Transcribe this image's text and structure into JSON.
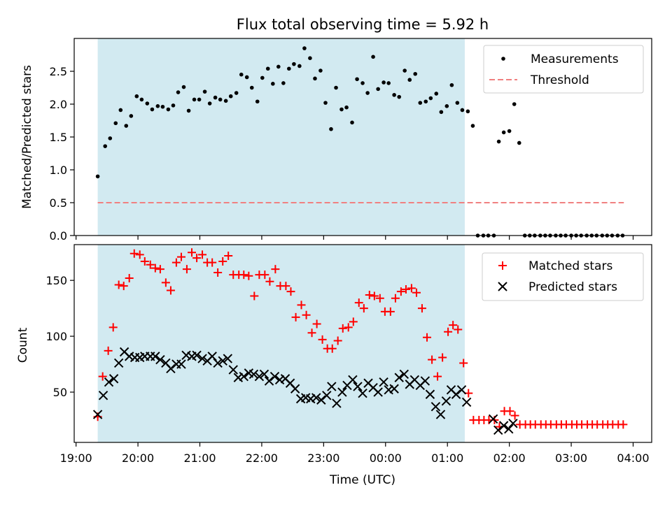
{
  "colors": {
    "shade": "#add8e6",
    "measure": "#000000",
    "threshold": "#f08080",
    "matched": "#ff0000",
    "predicted": "#000000"
  },
  "chart_data": [
    {
      "type": "scatter",
      "title": "Flux total observing time = 5.92 h",
      "ylabel": "Matched/Predicted stars",
      "ylim": [
        0,
        3.0
      ],
      "yticks": [
        0.0,
        0.5,
        1.0,
        1.5,
        2.0,
        2.5
      ],
      "ytick_labels": [
        "0.0",
        "0.5",
        "1.0",
        "1.5",
        "2.0",
        "2.5"
      ],
      "xlim_hours": [
        18.97,
        28.3
      ],
      "xticks_hours": [
        19,
        20,
        21,
        22,
        23,
        24,
        25,
        26,
        27,
        28
      ],
      "shaded_span_hours": [
        19.35,
        25.28
      ],
      "legend_position": "top-right",
      "series": [
        {
          "name": "Measurements",
          "marker": "dot",
          "x": [
            19.35,
            19.47,
            19.55,
            19.64,
            19.72,
            19.81,
            19.89,
            19.98,
            20.06,
            20.15,
            20.23,
            20.32,
            20.4,
            20.49,
            20.57,
            20.65,
            20.74,
            20.82,
            20.91,
            20.99,
            21.08,
            21.16,
            21.25,
            21.33,
            21.42,
            21.5,
            21.59,
            21.67,
            21.76,
            21.84,
            21.93,
            22.01,
            22.1,
            22.18,
            22.27,
            22.35,
            22.44,
            22.52,
            22.61,
            22.69,
            22.78,
            22.86,
            22.95,
            23.03,
            23.12,
            23.2,
            23.29,
            23.37,
            23.46,
            23.54,
            23.63,
            23.71,
            23.8,
            23.88,
            23.97,
            24.05,
            24.14,
            24.22,
            24.31,
            24.39,
            24.48,
            24.56,
            24.65,
            24.73,
            24.82,
            24.9,
            24.99,
            25.07,
            25.16,
            25.24,
            25.33,
            25.41,
            25.49,
            25.58,
            25.66,
            25.75,
            25.83,
            25.91,
            26.0,
            26.08,
            26.16,
            26.25,
            26.33,
            26.41,
            26.5,
            26.58,
            26.66,
            26.75,
            26.83,
            26.91,
            27.0,
            27.08,
            27.16,
            27.25,
            27.33,
            27.41,
            27.5,
            27.58,
            27.66,
            27.75,
            27.83
          ],
          "y": [
            0.9,
            1.36,
            1.48,
            1.71,
            1.91,
            1.67,
            1.82,
            2.12,
            2.07,
            2.01,
            1.92,
            1.97,
            1.96,
            1.92,
            1.98,
            2.18,
            2.26,
            1.9,
            2.07,
            2.07,
            2.19,
            2.01,
            2.1,
            2.07,
            2.05,
            2.12,
            2.17,
            2.45,
            2.41,
            2.25,
            2.04,
            2.4,
            2.54,
            2.31,
            2.57,
            2.32,
            2.54,
            2.61,
            2.58,
            2.85,
            2.7,
            2.39,
            2.51,
            2.02,
            1.62,
            2.25,
            1.92,
            1.95,
            1.72,
            2.38,
            2.32,
            2.17,
            2.72,
            2.23,
            2.33,
            2.32,
            2.14,
            2.11,
            2.51,
            2.37,
            2.46,
            2.02,
            2.04,
            2.09,
            2.16,
            1.88,
            1.97,
            2.29,
            2.02,
            1.91,
            1.89,
            1.67,
            0.0,
            0.0,
            0.0,
            0.0,
            1.43,
            1.57,
            1.59,
            2.0,
            1.41,
            0.0,
            0.0,
            0.0,
            0.0,
            0.0,
            0.0,
            0.0,
            0.0,
            0.0,
            0.0,
            0.0,
            0.0,
            0.0,
            0.0,
            0.0,
            0.0,
            0.0,
            0.0,
            0.0,
            0.0
          ]
        },
        {
          "name": "Threshold",
          "style": "dashed",
          "x": [
            19.35,
            27.85
          ],
          "y": [
            0.5,
            0.5
          ]
        }
      ]
    },
    {
      "type": "scatter",
      "xlabel": "Time (UTC)",
      "ylabel": "Count",
      "ylim": [
        5,
        182
      ],
      "yticks": [
        50,
        100,
        150
      ],
      "ytick_labels": [
        "50",
        "100",
        "150"
      ],
      "xlim_hours": [
        18.97,
        28.3
      ],
      "xticks_hours": [
        19,
        20,
        21,
        22,
        23,
        24,
        25,
        26,
        27,
        28
      ],
      "xtick_labels": [
        "19:00",
        "20:00",
        "21:00",
        "22:00",
        "23:00",
        "00:00",
        "01:00",
        "02:00",
        "03:00",
        "04:00"
      ],
      "shaded_span_hours": [
        19.35,
        25.28
      ],
      "legend_position": "top-right",
      "series": [
        {
          "name": "Matched stars",
          "marker": "plus",
          "x": [
            19.35,
            19.43,
            19.52,
            19.6,
            19.69,
            19.77,
            19.86,
            19.94,
            20.03,
            20.11,
            20.2,
            20.28,
            20.36,
            20.45,
            20.53,
            20.62,
            20.7,
            20.79,
            20.87,
            20.95,
            21.04,
            21.12,
            21.2,
            21.29,
            21.37,
            21.46,
            21.54,
            21.63,
            21.71,
            21.79,
            21.88,
            21.96,
            22.05,
            22.13,
            22.22,
            22.3,
            22.39,
            22.47,
            22.55,
            22.64,
            22.72,
            22.81,
            22.89,
            22.98,
            23.06,
            23.14,
            23.23,
            23.31,
            23.4,
            23.48,
            23.57,
            23.65,
            23.74,
            23.82,
            23.91,
            23.99,
            24.08,
            24.16,
            24.25,
            24.33,
            24.42,
            24.5,
            24.59,
            24.67,
            24.75,
            24.84,
            24.92,
            25.01,
            25.09,
            25.17,
            25.26,
            25.34,
            25.42,
            25.51,
            25.59,
            25.67,
            25.76,
            25.84,
            25.92,
            26.01,
            26.09,
            26.17,
            26.26,
            26.34,
            26.42,
            26.51,
            26.59,
            26.67,
            26.76,
            26.84,
            26.92,
            27.01,
            27.09,
            27.17,
            27.26,
            27.34,
            27.42,
            27.51,
            27.59,
            27.67,
            27.76,
            27.84
          ],
          "y": [
            28,
            64,
            87,
            108,
            146,
            145,
            152,
            174,
            173,
            167,
            164,
            161,
            160,
            148,
            141,
            166,
            171,
            160,
            175,
            170,
            173,
            166,
            166,
            157,
            167,
            172,
            155,
            155,
            155,
            154,
            136,
            155,
            155,
            149,
            160,
            145,
            145,
            140,
            117,
            128,
            119,
            103,
            111,
            97,
            89,
            89,
            96,
            107,
            108,
            113,
            130,
            125,
            137,
            136,
            134,
            122,
            122,
            134,
            140,
            142,
            143,
            139,
            125,
            99,
            79,
            64,
            81,
            104,
            110,
            106,
            76,
            49,
            25,
            25,
            25,
            25,
            25,
            19,
            33,
            33,
            29,
            21,
            21,
            21,
            21,
            21,
            21,
            21,
            21,
            21,
            21,
            21,
            21,
            21,
            21,
            21,
            21,
            21,
            21,
            21,
            21,
            21
          ]
        },
        {
          "name": "Predicted stars",
          "marker": "x",
          "x": [
            19.35,
            19.44,
            19.53,
            19.61,
            19.69,
            19.78,
            19.86,
            19.95,
            20.03,
            20.11,
            20.2,
            20.28,
            20.36,
            20.45,
            20.53,
            20.62,
            20.7,
            20.78,
            20.87,
            20.95,
            21.04,
            21.12,
            21.2,
            21.29,
            21.37,
            21.45,
            21.54,
            21.62,
            21.71,
            21.79,
            21.87,
            21.96,
            22.04,
            22.12,
            22.21,
            22.29,
            22.38,
            22.46,
            22.54,
            22.63,
            22.71,
            22.79,
            22.88,
            22.96,
            23.05,
            23.13,
            23.21,
            23.3,
            23.38,
            23.47,
            23.55,
            23.63,
            23.72,
            23.8,
            23.88,
            23.97,
            24.05,
            24.14,
            24.22,
            24.3,
            24.39,
            24.47,
            24.56,
            24.64,
            24.72,
            24.81,
            24.89,
            24.98,
            25.06,
            25.14,
            25.23,
            25.31,
            25.74,
            25.82,
            25.91,
            25.99,
            26.06
          ],
          "y": [
            30,
            47,
            59,
            62,
            76,
            86,
            82,
            81,
            81,
            82,
            82,
            82,
            79,
            76,
            71,
            75,
            75,
            83,
            82,
            83,
            80,
            78,
            82,
            76,
            78,
            80,
            70,
            63,
            64,
            67,
            66,
            64,
            66,
            60,
            64,
            61,
            62,
            58,
            53,
            44,
            45,
            44,
            45,
            43,
            47,
            55,
            40,
            50,
            56,
            61,
            55,
            49,
            58,
            54,
            50,
            59,
            52,
            53,
            63,
            66,
            57,
            61,
            56,
            60,
            48,
            37,
            30,
            42,
            52,
            48,
            52,
            41,
            26,
            16,
            20,
            17,
            22
          ]
        }
      ]
    }
  ]
}
